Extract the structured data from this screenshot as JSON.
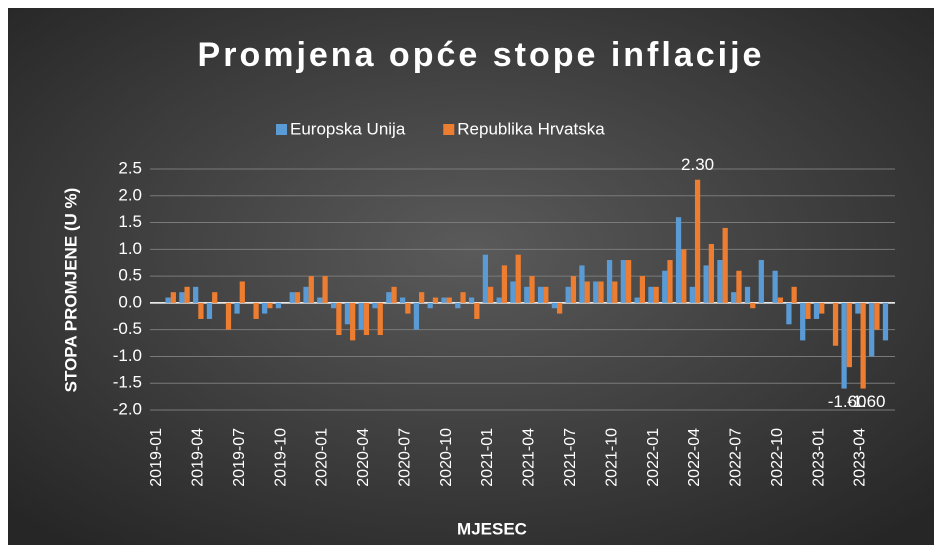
{
  "chart_data": {
    "type": "bar",
    "title": "Promjena opće stope inflacije",
    "xlabel": "MJESEC",
    "ylabel": "STOPA PROMJENE (U %)",
    "categories": [
      "2019-01",
      null,
      null,
      "2019-04",
      null,
      null,
      "2019-07",
      null,
      null,
      "2019-10",
      null,
      null,
      "2020-01",
      null,
      null,
      "2020-04",
      null,
      null,
      "2020-07",
      null,
      null,
      "2020-10",
      null,
      null,
      "2021-01",
      null,
      null,
      "2021-04",
      null,
      null,
      "2021-07",
      null,
      null,
      "2021-10",
      null,
      null,
      "2022-01",
      null,
      null,
      "2022-04",
      null,
      null,
      "2022-07",
      null,
      null,
      "2022-10",
      null,
      null,
      "2023-01",
      null,
      null,
      "2023-04",
      null,
      null
    ],
    "series": [
      {
        "name": "Europska Unija",
        "color": "#5b9bd5",
        "values": [
          0,
          0.1,
          0.2,
          0.3,
          -0.3,
          0,
          -0.2,
          0,
          -0.2,
          -0.1,
          0.2,
          0.3,
          0.1,
          -0.1,
          -0.4,
          -0.5,
          -0.1,
          0.2,
          0.1,
          -0.5,
          -0.1,
          0.1,
          -0.1,
          0.1,
          0.9,
          0.1,
          0.4,
          0.3,
          0.3,
          -0.1,
          0.3,
          0.7,
          0.4,
          0.8,
          0.8,
          0.1,
          0.3,
          0.6,
          1.6,
          0.3,
          0.7,
          0.8,
          0.2,
          0.3,
          0.8,
          0.6,
          -0.4,
          -0.7,
          -0.3,
          0,
          -1.6,
          -0.2,
          -1.0,
          -0.7
        ],
        "value_labels": [
          null,
          null,
          null,
          null,
          null,
          null,
          null,
          null,
          null,
          null,
          null,
          null,
          null,
          null,
          null,
          null,
          null,
          null,
          null,
          null,
          null,
          null,
          null,
          null,
          null,
          null,
          null,
          null,
          null,
          null,
          null,
          null,
          null,
          null,
          null,
          null,
          null,
          null,
          null,
          null,
          null,
          null,
          null,
          null,
          null,
          null,
          null,
          null,
          null,
          null,
          "-1.60",
          null,
          null,
          null
        ]
      },
      {
        "name": "Republika Hrvatska",
        "color": "#ed7d31",
        "values": [
          0,
          0.2,
          0.3,
          -0.3,
          0.2,
          -0.5,
          0.4,
          -0.3,
          -0.1,
          0,
          0.2,
          0.5,
          0.5,
          -0.6,
          -0.7,
          -0.6,
          -0.6,
          0.3,
          -0.2,
          0.2,
          0.1,
          0.1,
          0.2,
          -0.3,
          0.3,
          0.7,
          0.9,
          0.5,
          0.3,
          -0.2,
          0.5,
          0.4,
          0.4,
          0.4,
          0.8,
          0.5,
          0.3,
          0.8,
          1.0,
          2.3,
          1.1,
          1.4,
          0.6,
          -0.1,
          0,
          0.1,
          0.3,
          -0.3,
          -0.2,
          -0.8,
          -1.2,
          -1.6,
          -0.5,
          null
        ],
        "value_labels": [
          null,
          null,
          null,
          null,
          null,
          null,
          null,
          null,
          null,
          null,
          null,
          null,
          null,
          null,
          null,
          null,
          null,
          null,
          null,
          null,
          null,
          null,
          null,
          null,
          null,
          null,
          null,
          null,
          null,
          null,
          null,
          null,
          null,
          null,
          null,
          null,
          null,
          null,
          null,
          "2.30",
          null,
          null,
          null,
          null,
          null,
          null,
          null,
          null,
          null,
          null,
          null,
          "-1.60",
          null,
          null
        ]
      }
    ],
    "ylim": [
      -2.0,
      2.5
    ],
    "yticks": [
      {
        "value": -2.0,
        "label": "-2.0"
      },
      -1.5,
      {
        "value": -1.0,
        "label": "-1.0"
      },
      -0.5,
      {
        "value": 0,
        "label": "0.0"
      },
      0.5,
      {
        "value": 1.0,
        "label": "1.0"
      },
      1.5,
      {
        "value": 2.0,
        "label": "2.0"
      },
      2.5
    ],
    "grid": true,
    "legend": "top"
  }
}
